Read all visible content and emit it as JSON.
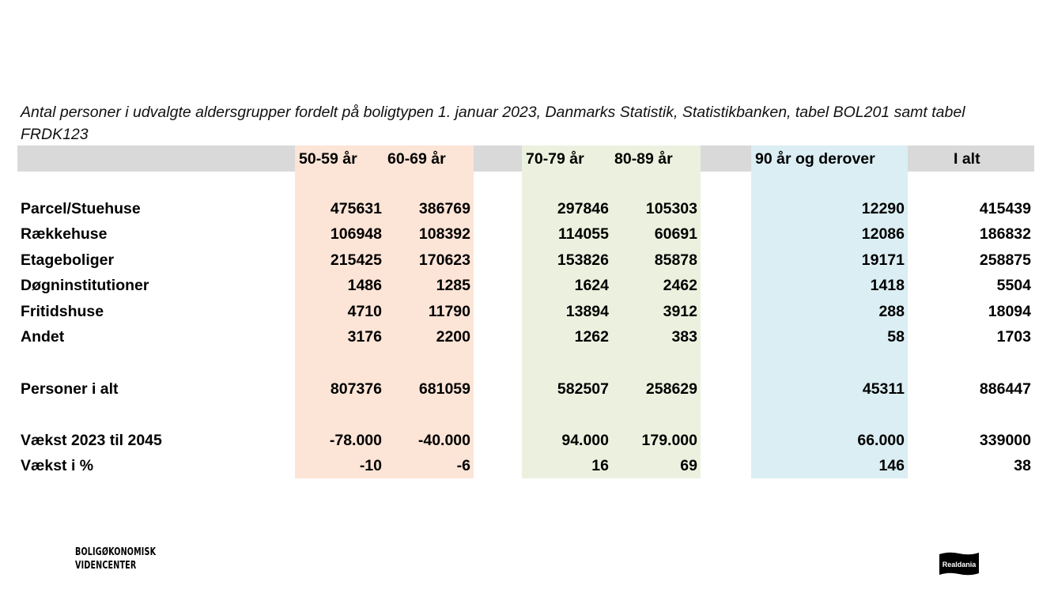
{
  "title": "Antal personer i udvalgte aldersgrupper fordelt på boligtypen 1. januar 2023, Danmarks Statistik, Statistikbanken, tabel BOL201 samt tabel FRDK123",
  "colors": {
    "header_band": "#d9d9d9",
    "group1": "#fce4d6",
    "group2": "#ebf1de",
    "group3": "#daeef3"
  },
  "headers": [
    "50-59 år",
    "60-69 år",
    "70-79 år",
    "80-89 år",
    "90 år og derover",
    "I alt"
  ],
  "rows": [
    {
      "label": "Parcel/Stuehuse",
      "values": [
        "475631",
        "386769",
        "297846",
        "105303",
        "12290",
        "415439"
      ]
    },
    {
      "label": "Rækkehuse",
      "values": [
        "106948",
        "108392",
        "114055",
        "60691",
        "12086",
        "186832"
      ]
    },
    {
      "label": "Etageboliger",
      "values": [
        "215425",
        "170623",
        "153826",
        "85878",
        "19171",
        "258875"
      ]
    },
    {
      "label": "Døgninstitutioner",
      "values": [
        "1486",
        "1285",
        "1624",
        "2462",
        "1418",
        "5504"
      ]
    },
    {
      "label": "Fritidshuse",
      "values": [
        "4710",
        "11790",
        "13894",
        "3912",
        "288",
        "18094"
      ]
    },
    {
      "label": "Andet",
      "values": [
        "3176",
        "2200",
        "1262",
        "383",
        "58",
        "1703"
      ]
    },
    {
      "label": "Personer i alt",
      "values": [
        "807376",
        "681059",
        "582507",
        "258629",
        "45311",
        "886447"
      ]
    },
    {
      "label": "Vækst 2023 til 2045",
      "values": [
        "-78.000",
        "-40.000",
        "94.000",
        "179.000",
        "66.000",
        "339000"
      ]
    },
    {
      "label": "Vækst i %",
      "values": [
        "-10",
        "-6",
        "16",
        "69",
        "146",
        "38"
      ]
    }
  ],
  "logos": {
    "left_line1": "BOLIGØKONOMISK",
    "left_line2": "VIDENCENTER",
    "right": "Realdania"
  }
}
